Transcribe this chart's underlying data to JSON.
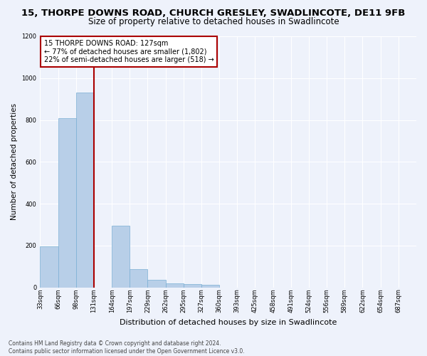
{
  "title1": "15, THORPE DOWNS ROAD, CHURCH GRESLEY, SWADLINCOTE, DE11 9FB",
  "title2": "Size of property relative to detached houses in Swadlincote",
  "xlabel": "Distribution of detached houses by size in Swadlincote",
  "ylabel": "Number of detached properties",
  "footer1": "Contains HM Land Registry data © Crown copyright and database right 2024.",
  "footer2": "Contains public sector information licensed under the Open Government Licence v3.0.",
  "categories": [
    "33sqm",
    "66sqm",
    "98sqm",
    "131sqm",
    "164sqm",
    "197sqm",
    "229sqm",
    "262sqm",
    "295sqm",
    "327sqm",
    "360sqm",
    "393sqm",
    "425sqm",
    "458sqm",
    "491sqm",
    "524sqm",
    "556sqm",
    "589sqm",
    "622sqm",
    "654sqm",
    "687sqm"
  ],
  "values": [
    195,
    810,
    930,
    0,
    295,
    88,
    38,
    20,
    15,
    12,
    0,
    0,
    0,
    0,
    0,
    0,
    0,
    0,
    0,
    0,
    0
  ],
  "bar_color": "#b8cfe8",
  "bar_edge_color": "#7aaed4",
  "vline_color": "#aa0000",
  "vline_x": 3.0,
  "annotation_box_color": "#ffffff",
  "annotation_box_edge_color": "#aa0000",
  "annotation_line0": "15 THORPE DOWNS ROAD: 127sqm",
  "annotation_line1": "← 77% of detached houses are smaller (1,802)",
  "annotation_line2": "22% of semi-detached houses are larger (518) →",
  "ylim": [
    0,
    1200
  ],
  "yticks": [
    0,
    200,
    400,
    600,
    800,
    1000,
    1200
  ],
  "bg_color": "#eef2fb",
  "grid_color": "#ffffff",
  "title1_fontsize": 9.5,
  "title2_fontsize": 8.5,
  "xlabel_fontsize": 8,
  "ylabel_fontsize": 7.5,
  "tick_fontsize": 6,
  "footer_fontsize": 5.5
}
